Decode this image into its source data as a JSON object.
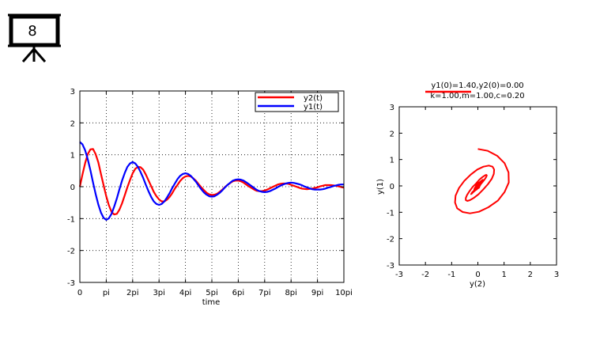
{
  "slide": {
    "badge_number": "8",
    "icon": "projector-screen-icon"
  },
  "chart_data": [
    {
      "type": "line",
      "title": "",
      "xlabel": "time",
      "ylabel": "",
      "xlim": [
        0,
        10
      ],
      "ylim": [
        -3,
        3
      ],
      "x_unit": "pi",
      "grid": true,
      "legend_position": "top-right",
      "x_tick_labels": [
        "0",
        "pi",
        "2pi",
        "3pi",
        "4pi",
        "5pi",
        "6pi",
        "7pi",
        "8pi",
        "9pi",
        "10pi"
      ],
      "y_tick_labels": [
        "-3",
        "-2",
        "-1",
        "0",
        "1",
        "2",
        "3"
      ],
      "series": [
        {
          "name": "y2(t)",
          "color": "#ff0000",
          "points": [
            [
              0,
              0.0
            ],
            [
              0.1,
              0.38
            ],
            [
              0.2,
              0.74
            ],
            [
              0.3,
              1.02
            ],
            [
              0.4,
              1.17
            ],
            [
              0.5,
              1.18
            ],
            [
              0.6,
              1.02
            ],
            [
              0.7,
              0.76
            ],
            [
              0.8,
              0.4
            ],
            [
              0.9,
              0.04
            ],
            [
              1.0,
              -0.3
            ],
            [
              1.1,
              -0.58
            ],
            [
              1.2,
              -0.79
            ],
            [
              1.3,
              -0.87
            ],
            [
              1.4,
              -0.85
            ],
            [
              1.5,
              -0.72
            ],
            [
              1.6,
              -0.52
            ],
            [
              1.7,
              -0.27
            ],
            [
              1.8,
              -0.02
            ],
            [
              1.9,
              0.21
            ],
            [
              2.0,
              0.42
            ],
            [
              2.1,
              0.56
            ],
            [
              2.2,
              0.62
            ],
            [
              2.3,
              0.61
            ],
            [
              2.4,
              0.53
            ],
            [
              2.5,
              0.38
            ],
            [
              2.6,
              0.2
            ],
            [
              2.7,
              0.02
            ],
            [
              2.8,
              -0.16
            ],
            [
              2.9,
              -0.3
            ],
            [
              3.0,
              -0.4
            ],
            [
              3.1,
              -0.46
            ],
            [
              3.2,
              -0.46
            ],
            [
              3.3,
              -0.41
            ],
            [
              3.4,
              -0.32
            ],
            [
              3.5,
              -0.2
            ],
            [
              3.6,
              -0.06
            ],
            [
              3.7,
              0.06
            ],
            [
              3.8,
              0.18
            ],
            [
              3.9,
              0.27
            ],
            [
              4.0,
              0.32
            ],
            [
              4.1,
              0.34
            ],
            [
              4.2,
              0.32
            ],
            [
              4.3,
              0.26
            ],
            [
              4.4,
              0.18
            ],
            [
              4.5,
              0.08
            ],
            [
              4.6,
              -0.02
            ],
            [
              4.7,
              -0.11
            ],
            [
              4.8,
              -0.19
            ],
            [
              4.9,
              -0.24
            ],
            [
              5.0,
              -0.26
            ],
            [
              5.1,
              -0.25
            ],
            [
              5.2,
              -0.22
            ],
            [
              5.3,
              -0.16
            ],
            [
              5.4,
              -0.09
            ],
            [
              5.5,
              -0.01
            ],
            [
              5.6,
              0.06
            ],
            [
              5.7,
              0.12
            ],
            [
              5.8,
              0.17
            ],
            [
              5.9,
              0.19
            ],
            [
              6.0,
              0.19
            ],
            [
              6.1,
              0.17
            ],
            [
              6.2,
              0.13
            ],
            [
              6.3,
              0.07
            ],
            [
              6.4,
              0.01
            ],
            [
              6.5,
              -0.04
            ],
            [
              6.6,
              -0.09
            ],
            [
              6.7,
              -0.13
            ],
            [
              6.8,
              -0.14
            ],
            [
              6.9,
              -0.14
            ],
            [
              7.0,
              -0.12
            ],
            [
              7.1,
              -0.09
            ],
            [
              7.2,
              -0.05
            ],
            [
              7.3,
              -0.01
            ],
            [
              7.4,
              0.03
            ],
            [
              7.5,
              0.07
            ],
            [
              7.6,
              0.09
            ],
            [
              7.7,
              0.1
            ],
            [
              7.8,
              0.1
            ],
            [
              7.9,
              0.09
            ],
            [
              8.0,
              0.06
            ],
            [
              8.1,
              0.03
            ],
            [
              8.2,
              0.0
            ],
            [
              8.3,
              -0.03
            ],
            [
              8.4,
              -0.06
            ],
            [
              8.5,
              -0.07
            ],
            [
              8.6,
              -0.08
            ],
            [
              8.7,
              -0.07
            ],
            [
              8.8,
              -0.06
            ],
            [
              8.9,
              -0.04
            ],
            [
              9.0,
              -0.02
            ],
            [
              9.1,
              0.01
            ],
            [
              9.2,
              0.03
            ],
            [
              9.3,
              0.05
            ],
            [
              9.4,
              0.05
            ],
            [
              9.5,
              0.05
            ],
            [
              9.6,
              0.04
            ],
            [
              9.7,
              0.03
            ],
            [
              9.8,
              0.01
            ],
            [
              9.9,
              -0.01
            ],
            [
              10.0,
              -0.03
            ]
          ]
        },
        {
          "name": "y1(t)",
          "color": "#0000ff",
          "points": [
            [
              0,
              1.4
            ],
            [
              0.1,
              1.33
            ],
            [
              0.2,
              1.14
            ],
            [
              0.3,
              0.86
            ],
            [
              0.4,
              0.51
            ],
            [
              0.5,
              0.13
            ],
            [
              0.6,
              -0.23
            ],
            [
              0.7,
              -0.56
            ],
            [
              0.8,
              -0.81
            ],
            [
              0.9,
              -0.98
            ],
            [
              1.0,
              -1.04
            ],
            [
              1.1,
              -0.99
            ],
            [
              1.2,
              -0.85
            ],
            [
              1.3,
              -0.63
            ],
            [
              1.4,
              -0.37
            ],
            [
              1.5,
              -0.08
            ],
            [
              1.6,
              0.19
            ],
            [
              1.7,
              0.43
            ],
            [
              1.8,
              0.62
            ],
            [
              1.9,
              0.73
            ],
            [
              2.0,
              0.77
            ],
            [
              2.1,
              0.73
            ],
            [
              2.2,
              0.62
            ],
            [
              2.3,
              0.46
            ],
            [
              2.4,
              0.27
            ],
            [
              2.5,
              0.06
            ],
            [
              2.6,
              -0.14
            ],
            [
              2.7,
              -0.32
            ],
            [
              2.8,
              -0.46
            ],
            [
              2.9,
              -0.54
            ],
            [
              3.0,
              -0.57
            ],
            [
              3.1,
              -0.54
            ],
            [
              3.2,
              -0.46
            ],
            [
              3.3,
              -0.34
            ],
            [
              3.4,
              -0.2
            ],
            [
              3.5,
              -0.04
            ],
            [
              3.6,
              0.1
            ],
            [
              3.7,
              0.24
            ],
            [
              3.8,
              0.34
            ],
            [
              3.9,
              0.4
            ],
            [
              4.0,
              0.42
            ],
            [
              4.1,
              0.4
            ],
            [
              4.2,
              0.34
            ],
            [
              4.3,
              0.25
            ],
            [
              4.4,
              0.15
            ],
            [
              4.5,
              0.03
            ],
            [
              4.6,
              -0.08
            ],
            [
              4.7,
              -0.18
            ],
            [
              4.8,
              -0.25
            ],
            [
              4.9,
              -0.3
            ],
            [
              5.0,
              -0.31
            ],
            [
              5.1,
              -0.3
            ],
            [
              5.2,
              -0.25
            ],
            [
              5.3,
              -0.19
            ],
            [
              5.4,
              -0.11
            ],
            [
              5.5,
              -0.02
            ],
            [
              5.6,
              0.06
            ],
            [
              5.7,
              0.13
            ],
            [
              5.8,
              0.19
            ],
            [
              5.9,
              0.22
            ],
            [
              6.0,
              0.23
            ],
            [
              6.1,
              0.22
            ],
            [
              6.2,
              0.19
            ],
            [
              6.3,
              0.14
            ],
            [
              6.4,
              0.08
            ],
            [
              6.5,
              0.02
            ],
            [
              6.6,
              -0.04
            ],
            [
              6.7,
              -0.1
            ],
            [
              6.8,
              -0.14
            ],
            [
              6.9,
              -0.16
            ],
            [
              7.0,
              -0.17
            ],
            [
              7.1,
              -0.16
            ],
            [
              7.2,
              -0.14
            ],
            [
              7.3,
              -0.1
            ],
            [
              7.4,
              -0.06
            ],
            [
              7.5,
              -0.01
            ],
            [
              7.6,
              0.03
            ],
            [
              7.7,
              0.07
            ],
            [
              7.8,
              0.1
            ],
            [
              7.9,
              0.12
            ],
            [
              8.0,
              0.13
            ],
            [
              8.1,
              0.12
            ],
            [
              8.2,
              0.1
            ],
            [
              8.3,
              0.08
            ],
            [
              8.4,
              0.05
            ],
            [
              8.5,
              0.01
            ],
            [
              8.6,
              -0.02
            ],
            [
              8.7,
              -0.05
            ],
            [
              8.8,
              -0.08
            ],
            [
              8.9,
              -0.09
            ],
            [
              9.0,
              -0.09
            ],
            [
              9.1,
              -0.09
            ],
            [
              9.2,
              -0.08
            ],
            [
              9.3,
              -0.06
            ],
            [
              9.4,
              -0.03
            ],
            [
              9.5,
              -0.01
            ],
            [
              9.6,
              0.02
            ],
            [
              9.7,
              0.04
            ],
            [
              9.8,
              0.06
            ],
            [
              9.9,
              0.07
            ],
            [
              10.0,
              0.07
            ]
          ]
        }
      ]
    },
    {
      "type": "line",
      "title": "y1(0)=1.40,y2(0)=0.00",
      "subtitle": "k=1.00,m=1.00,c=0.20",
      "xlabel": "y(2)",
      "ylabel": "y(1)",
      "xlim": [
        -3,
        3
      ],
      "ylim": [
        -3,
        3
      ],
      "grid": false,
      "x_tick_labels": [
        "-3",
        "-2",
        "-1",
        "0",
        "1",
        "2",
        "3"
      ],
      "y_tick_labels": [
        "-3",
        "-2",
        "-1",
        "0",
        "1",
        "2",
        "3"
      ],
      "series": [
        {
          "color": "#ff0000",
          "x_series": "y2(t)",
          "y_series": "y1(t)"
        }
      ]
    }
  ]
}
